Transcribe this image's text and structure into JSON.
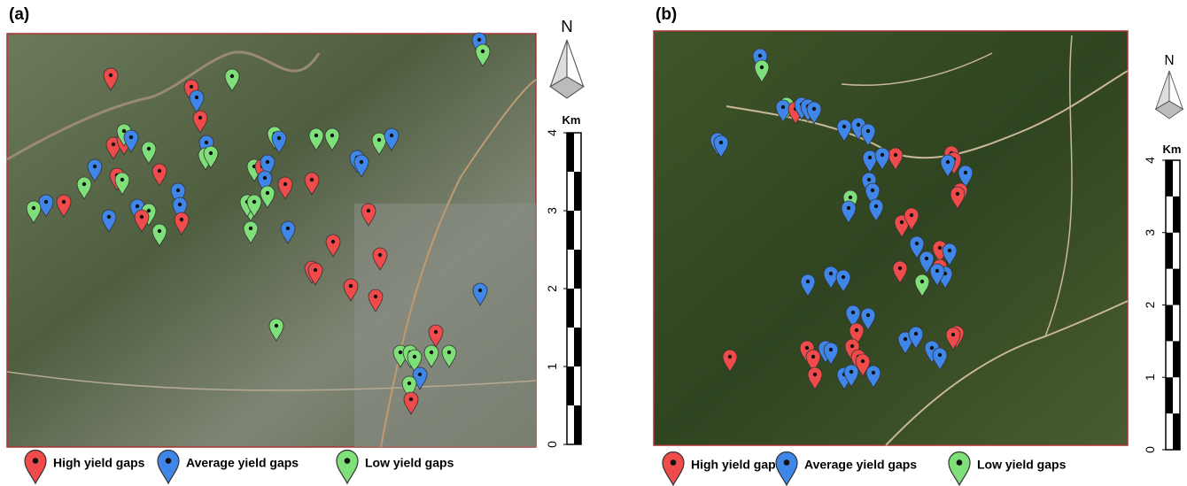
{
  "panels": [
    {
      "label": "(a)",
      "north": "N",
      "scale": {
        "unit": "Km",
        "ticks": [
          0,
          1,
          2,
          3,
          4
        ]
      },
      "legend": [
        "High yield gaps",
        "Average yield gaps",
        "Low yield gaps"
      ]
    },
    {
      "label": "(b)",
      "north": "N",
      "scale": {
        "unit": "Km",
        "ticks": [
          0,
          1,
          2,
          3,
          4
        ]
      },
      "legend": [
        "High yield gaps",
        "Average yield gaps",
        "Low yield gaps"
      ]
    }
  ]
}
